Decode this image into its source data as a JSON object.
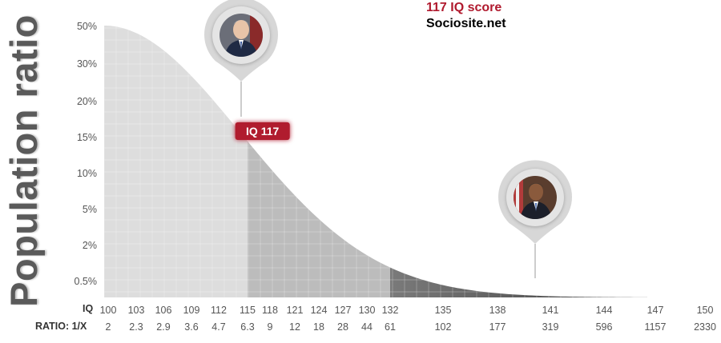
{
  "brand": {
    "title": "117 IQ score",
    "site": "Sociosite.net"
  },
  "big_ylabel": "Population ratio",
  "marker": {
    "label": "IQ 117",
    "iq": 117,
    "ratio_pct": 14
  },
  "avatars": [
    {
      "name": "portrait-icon",
      "iq": 117
    },
    {
      "name": "portrait-icon",
      "iq": 142
    }
  ],
  "colors": {
    "accent": "#b01a2e",
    "light_fill": "#dddddd",
    "mid_fill": "#bcbcbc",
    "dark_fill": "#7a7a7a"
  },
  "chart_data": {
    "type": "area",
    "title": "",
    "xlabel": "IQ",
    "ylabel": "Population ratio",
    "y_ticks": [
      "50%",
      "30%",
      "20%",
      "15%",
      "10%",
      "5%",
      "2%",
      "0.5%"
    ],
    "iq_ticks": [
      100,
      103,
      106,
      109,
      112,
      115,
      118,
      121,
      124,
      127,
      130,
      132,
      135,
      138,
      141,
      144,
      147,
      150
    ],
    "ratio_row_label": "RATIO: 1/X",
    "iq_row_label": "IQ",
    "ratios": [
      "2",
      "2.3",
      "2.9",
      "3.6",
      "4.7",
      "6.3",
      "9",
      "12",
      "18",
      "28",
      "44",
      "61",
      "102",
      "177",
      "319",
      "596",
      "1157",
      "2330"
    ],
    "bands": [
      {
        "from": 100,
        "to": 115,
        "shade": "light"
      },
      {
        "from": 115,
        "to": 132,
        "shade": "mid"
      },
      {
        "from": 132,
        "to": 150,
        "shade": "dark"
      }
    ],
    "grid": true
  }
}
